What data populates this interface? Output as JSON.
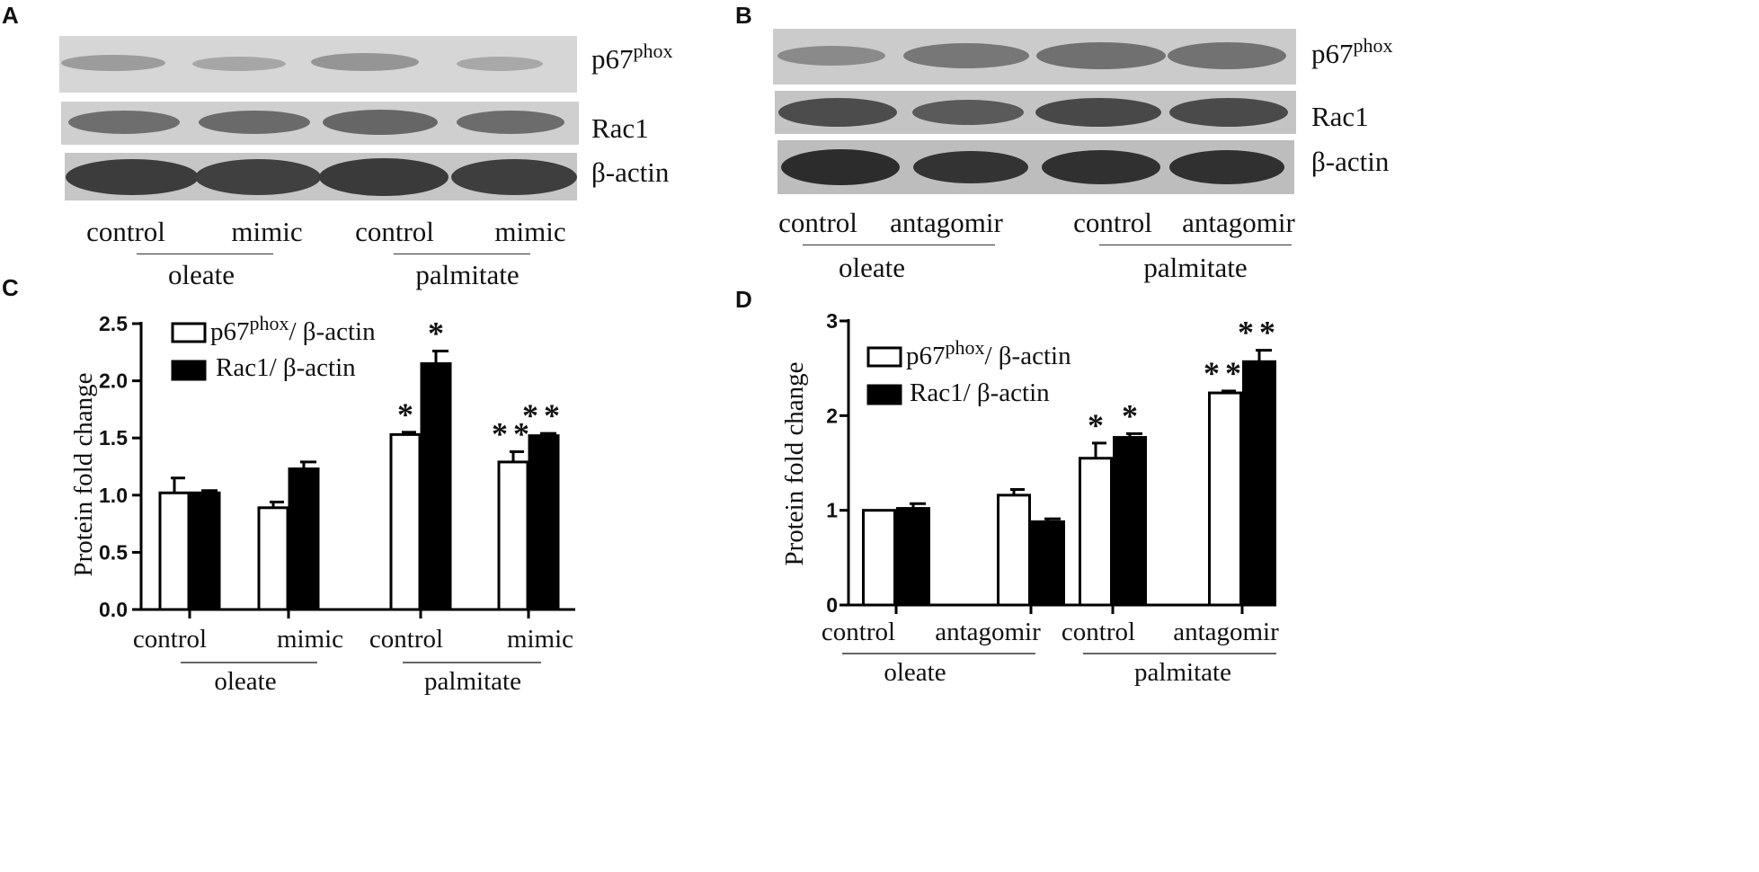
{
  "panels": {
    "a": "A",
    "b": "B",
    "c": "C",
    "d": "D"
  },
  "blot_a": {
    "labels": {
      "p67_base": "p67",
      "p67_sup": "phox",
      "rac1": "Rac1",
      "actin": "β-actin"
    },
    "lanes": [
      "control",
      "mimic",
      "control",
      "mimic"
    ],
    "groups": [
      "oleate",
      "palmitate"
    ]
  },
  "blot_b": {
    "labels": {
      "p67_base": "p67",
      "p67_sup": "phox",
      "rac1": "Rac1",
      "actin": "β-actin"
    },
    "lanes": [
      "control",
      "antagomir",
      "control",
      "antagomir"
    ],
    "groups": [
      "oleate",
      "palmitate"
    ]
  },
  "chart_data": [
    {
      "type": "bar",
      "panel": "C",
      "ylabel": "Protein fold change",
      "ylim": [
        0,
        2.5
      ],
      "yticks": [
        "0.0",
        "0.5",
        "1.0",
        "1.5",
        "2.0",
        "2.5"
      ],
      "categories": [
        "control",
        "mimic",
        "control",
        "mimic"
      ],
      "groups": [
        "oleate",
        "palmitate"
      ],
      "legend": {
        "p67_base": "p67",
        "p67_sup": "phox",
        "p67_tail": "/ β-actin",
        "rac1": "Rac1/ β-actin"
      },
      "series": [
        {
          "name": "p67phox/ β-actin",
          "values": [
            1.02,
            0.89,
            1.53,
            1.29
          ],
          "errors": [
            0.13,
            0.05,
            0.02,
            0.09
          ],
          "annotations": [
            "",
            "",
            "*",
            "**"
          ]
        },
        {
          "name": "Rac1/ β-actin",
          "values": [
            1.02,
            1.23,
            2.15,
            1.52
          ],
          "errors": [
            0.02,
            0.06,
            0.11,
            0.02
          ],
          "annotations": [
            "",
            "",
            "*",
            "**"
          ]
        }
      ]
    },
    {
      "type": "bar",
      "panel": "D",
      "ylabel": "Protein fold change",
      "ylim": [
        0,
        3
      ],
      "yticks": [
        "0",
        "1",
        "2",
        "3"
      ],
      "categories": [
        "control",
        "antagomir",
        "control",
        "antagomir"
      ],
      "groups": [
        "oleate",
        "palmitate"
      ],
      "legend": {
        "p67_base": "p67",
        "p67_sup": "phox",
        "p67_tail": "/ β-actin",
        "rac1": "Rac1/ β-actin"
      },
      "series": [
        {
          "name": "p67phox/ β-actin",
          "values": [
            1.0,
            1.16,
            1.55,
            2.24
          ],
          "errors": [
            0.0,
            0.06,
            0.16,
            0.02
          ],
          "annotations": [
            "",
            "",
            "*",
            "**"
          ]
        },
        {
          "name": "Rac1/ β-actin",
          "values": [
            1.02,
            0.88,
            1.77,
            2.57
          ],
          "errors": [
            0.05,
            0.03,
            0.04,
            0.12
          ],
          "annotations": [
            "",
            "",
            "*",
            "**"
          ]
        }
      ]
    }
  ]
}
